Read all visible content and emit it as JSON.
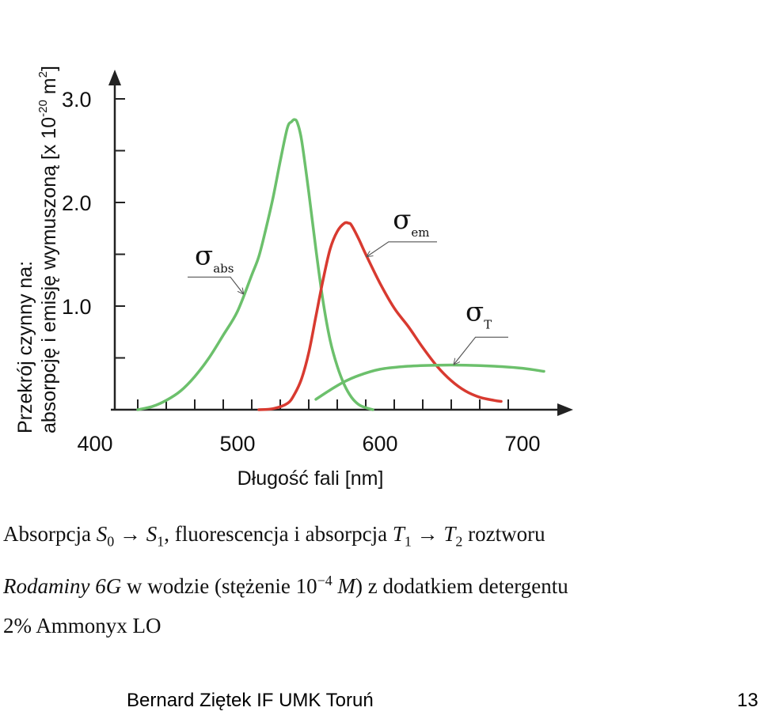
{
  "chart_data": {
    "type": "line",
    "ylabel_line1": "Przekrój czynny  na:",
    "ylabel_line2": "absorpcję i emisję wymuszoną [x 10",
    "ylabel_exp1": "-20",
    "ylabel_unit": " m",
    "ylabel_exp2": "2",
    "ylabel_close": "]",
    "xlabel": "Długość fali [nm]",
    "xlim": [
      380,
      720
    ],
    "ylim": [
      0,
      3.0
    ],
    "x_ticks": [
      400,
      500,
      600,
      700
    ],
    "x_tick_labels": [
      "400",
      "500",
      "600",
      "700"
    ],
    "y_ticks": [
      1.0,
      2.0,
      3.0
    ],
    "y_tick_labels": [
      "1.0",
      "2.0",
      "3.0"
    ],
    "minor_x_ticks": [
      430,
      450,
      470,
      490,
      510,
      530,
      550,
      570,
      590,
      610,
      630,
      650,
      670,
      690
    ],
    "minor_y_ticks": [
      0.5,
      1.5,
      2.5
    ],
    "series": [
      {
        "name": "σ_abs",
        "symbol": "σ",
        "sub": "abs",
        "color": "#6cc06c",
        "x": [
          430,
          440,
          450,
          460,
          470,
          480,
          490,
          500,
          510,
          515,
          520,
          525,
          530,
          535,
          538,
          540,
          542,
          545,
          550,
          555,
          560,
          565,
          570,
          575,
          580,
          585,
          590,
          595
        ],
        "y": [
          0.0,
          0.03,
          0.09,
          0.18,
          0.32,
          0.5,
          0.72,
          0.95,
          1.3,
          1.48,
          1.75,
          2.05,
          2.4,
          2.72,
          2.78,
          2.8,
          2.77,
          2.6,
          2.1,
          1.55,
          1.05,
          0.67,
          0.42,
          0.24,
          0.12,
          0.05,
          0.02,
          0.0
        ]
      },
      {
        "name": "σ_em",
        "symbol": "σ",
        "sub": "em",
        "color": "#d83a30",
        "x": [
          515,
          525,
          535,
          540,
          545,
          550,
          555,
          560,
          565,
          570,
          575,
          578,
          580,
          585,
          590,
          600,
          610,
          620,
          630,
          640,
          650,
          660,
          670,
          680,
          685
        ],
        "y": [
          0.0,
          0.01,
          0.06,
          0.15,
          0.3,
          0.55,
          0.9,
          1.25,
          1.55,
          1.72,
          1.8,
          1.8,
          1.78,
          1.65,
          1.5,
          1.22,
          0.98,
          0.8,
          0.6,
          0.42,
          0.28,
          0.18,
          0.12,
          0.09,
          0.08
        ]
      },
      {
        "name": "σ_T",
        "symbol": "σ",
        "sub": "T",
        "color": "#6cc06c",
        "x": [
          555,
          565,
          575,
          585,
          600,
          620,
          640,
          660,
          680,
          700,
          715
        ],
        "y": [
          0.1,
          0.19,
          0.27,
          0.33,
          0.39,
          0.42,
          0.43,
          0.43,
          0.42,
          0.4,
          0.37
        ]
      }
    ],
    "annotations": [
      {
        "series": 0,
        "text_x": 470,
        "text_y": 1.4,
        "line": [
          [
            465,
            1.28
          ],
          [
            495,
            1.28
          ],
          [
            504,
            1.12
          ]
        ]
      },
      {
        "series": 1,
        "text_x": 609,
        "text_y": 1.75,
        "line": [
          [
            640,
            1.62
          ],
          [
            606,
            1.62
          ],
          [
            591,
            1.48
          ]
        ]
      },
      {
        "series": 2,
        "text_x": 660,
        "text_y": 0.86,
        "line": [
          [
            690,
            0.7
          ],
          [
            667,
            0.7
          ],
          [
            652,
            0.44
          ]
        ]
      }
    ]
  },
  "caption": {
    "line1_text1": "Absorpcja ",
    "s0": "S",
    "s0_sub": "0",
    "arrow1": " → ",
    "s1": "S",
    "s1_sub": "1",
    "line1_text2": ", fluorescencja i absorpcja ",
    "t1": "T",
    "t1_sub": "1",
    "arrow2": " → ",
    "t2": "T",
    "t2_sub": "2",
    "line1_text3": " roztworu",
    "rodamine": "Rodaminy 6G",
    "line2_text1": " w wodzie (stężenie 10",
    "exp": "−4",
    "m": "M",
    "line2_text2": ") z dodatkiem detergentu",
    "line3": "2% Ammonyx LO"
  },
  "footer": {
    "author": "Bernard Ziętek IF UMK Toruń",
    "page_number": "13"
  }
}
